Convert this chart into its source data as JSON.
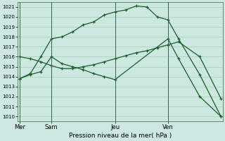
{
  "background_color": "#cce8e0",
  "grid_color": "#aaccbb",
  "line_color": "#1a5c2a",
  "title": "Pression niveau de la mer( hPa )",
  "ylim": [
    1009.5,
    1021.5
  ],
  "yticks": [
    1010,
    1011,
    1012,
    1013,
    1014,
    1015,
    1016,
    1017,
    1018,
    1019,
    1020,
    1021
  ],
  "day_labels": [
    "Mer",
    "Sam",
    "Jeu",
    "Ven"
  ],
  "day_positions": [
    0,
    3,
    9,
    14
  ],
  "vline_positions": [
    0,
    3,
    9,
    14
  ],
  "xlim": [
    -0.2,
    19.2
  ],
  "line1_x": [
    0,
    1,
    2,
    3,
    4,
    5,
    6,
    7,
    8,
    9,
    10,
    11,
    12,
    13,
    14,
    15,
    17,
    19
  ],
  "line1_y": [
    1013.8,
    1014.3,
    1016.0,
    1017.8,
    1018.0,
    1018.5,
    1019.2,
    1019.5,
    1020.2,
    1020.5,
    1020.7,
    1021.1,
    1021.0,
    1020.0,
    1019.7,
    1017.8,
    1014.2,
    1010.0
  ],
  "line2_x": [
    0,
    1,
    2,
    3,
    4,
    5,
    6,
    7,
    8,
    9,
    10,
    11,
    12,
    13,
    14,
    15,
    17,
    19
  ],
  "line2_y": [
    1016.0,
    1015.8,
    1015.5,
    1015.1,
    1014.8,
    1014.8,
    1015.0,
    1015.2,
    1015.5,
    1015.8,
    1016.1,
    1016.4,
    1016.6,
    1016.9,
    1017.2,
    1017.5,
    1016.0,
    1011.8
  ],
  "line3_x": [
    0,
    1,
    2,
    3,
    4,
    5,
    6,
    7,
    8,
    9,
    14,
    15,
    17,
    19
  ],
  "line3_y": [
    1013.8,
    1014.2,
    1014.5,
    1016.0,
    1015.3,
    1015.0,
    1014.7,
    1014.3,
    1014.0,
    1013.7,
    1017.8,
    1015.8,
    1012.0,
    1010.0
  ]
}
